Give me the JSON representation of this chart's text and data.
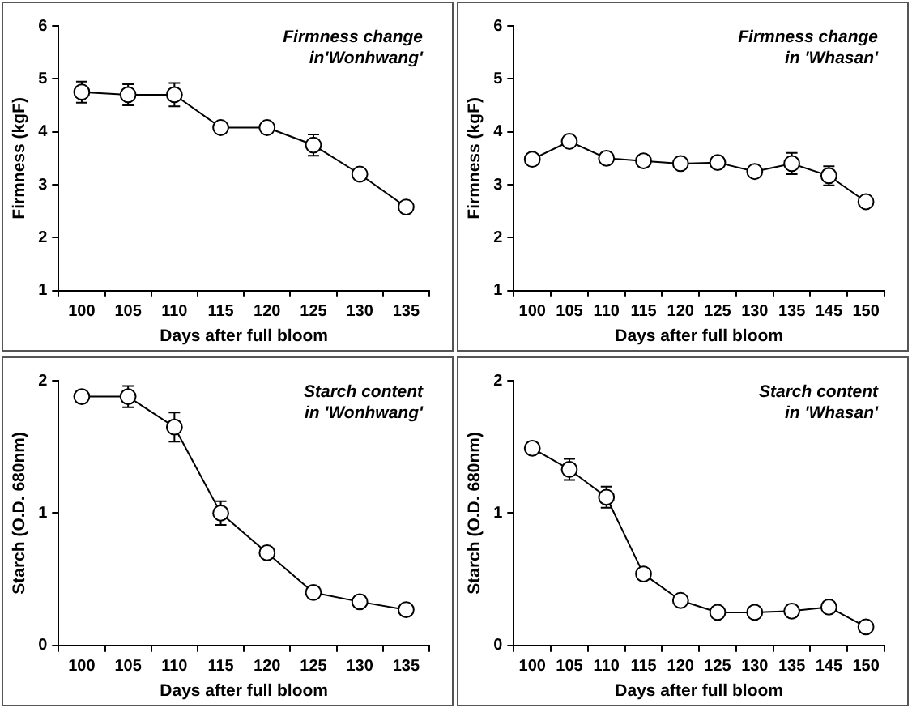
{
  "chart_data": [
    {
      "type": "line",
      "xlabel": "Days after full bloom",
      "ylabel": "Firmness (kgF)",
      "annotations": [
        "Firmness change\nin'Wonhwang'"
      ],
      "categories": [
        "100",
        "105",
        "110",
        "115",
        "120",
        "125",
        "130",
        "135"
      ],
      "ylim": [
        1,
        6
      ],
      "yticks": [
        1,
        2,
        3,
        4,
        5,
        6
      ],
      "grid": false,
      "legend": false,
      "marker": "circle",
      "line_style": "solid",
      "series": [
        {
          "color": "#000000",
          "values": [
            4.75,
            4.7,
            4.7,
            4.08,
            4.08,
            3.75,
            3.2,
            2.58
          ],
          "errors": [
            0.2,
            0.2,
            0.22,
            null,
            null,
            0.2,
            null,
            null
          ]
        }
      ]
    },
    {
      "type": "line",
      "xlabel": "Days after full bloom",
      "ylabel": "Firmness (kgF)",
      "annotations": [
        "Firmness change\nin 'Whasan'"
      ],
      "categories": [
        "100",
        "105",
        "110",
        "115",
        "120",
        "125",
        "130",
        "135",
        "145",
        "150"
      ],
      "ylim": [
        1,
        6
      ],
      "yticks": [
        1,
        2,
        3,
        4,
        5,
        6
      ],
      "grid": false,
      "legend": false,
      "marker": "circle",
      "line_style": "solid",
      "series": [
        {
          "color": "#000000",
          "values": [
            3.48,
            3.82,
            3.5,
            3.45,
            3.4,
            3.42,
            3.25,
            3.4,
            3.17,
            2.68
          ],
          "errors": [
            null,
            null,
            null,
            null,
            null,
            null,
            null,
            0.2,
            0.18,
            null
          ]
        }
      ]
    },
    {
      "type": "line",
      "xlabel": "Days after full bloom",
      "ylabel": "Starch (O.D. 680nm)",
      "annotations": [
        "Starch content\nin 'Wonhwang'"
      ],
      "categories": [
        "100",
        "105",
        "110",
        "115",
        "120",
        "125",
        "130",
        "135"
      ],
      "ylim": [
        0,
        2
      ],
      "yticks": [
        0,
        1,
        2
      ],
      "grid": false,
      "legend": false,
      "marker": "circle",
      "line_style": "solid",
      "series": [
        {
          "color": "#000000",
          "values": [
            1.88,
            1.88,
            1.65,
            1.0,
            0.7,
            0.4,
            0.33,
            0.27
          ],
          "errors": [
            null,
            0.08,
            0.11,
            0.09,
            null,
            null,
            null,
            null
          ]
        }
      ]
    },
    {
      "type": "line",
      "xlabel": "Days after full bloom",
      "ylabel": "Starch (O.D. 680nm)",
      "annotations": [
        "Starch content\nin 'Whasan'"
      ],
      "categories": [
        "100",
        "105",
        "110",
        "115",
        "120",
        "125",
        "130",
        "135",
        "145",
        "150"
      ],
      "ylim": [
        0,
        2
      ],
      "yticks": [
        0,
        1,
        2
      ],
      "grid": false,
      "legend": false,
      "marker": "circle",
      "line_style": "solid",
      "series": [
        {
          "color": "#000000",
          "values": [
            1.49,
            1.33,
            1.12,
            0.54,
            0.34,
            0.25,
            0.25,
            0.26,
            0.29,
            0.14
          ],
          "errors": [
            null,
            0.08,
            0.08,
            null,
            null,
            null,
            null,
            null,
            null,
            null
          ]
        }
      ]
    }
  ]
}
